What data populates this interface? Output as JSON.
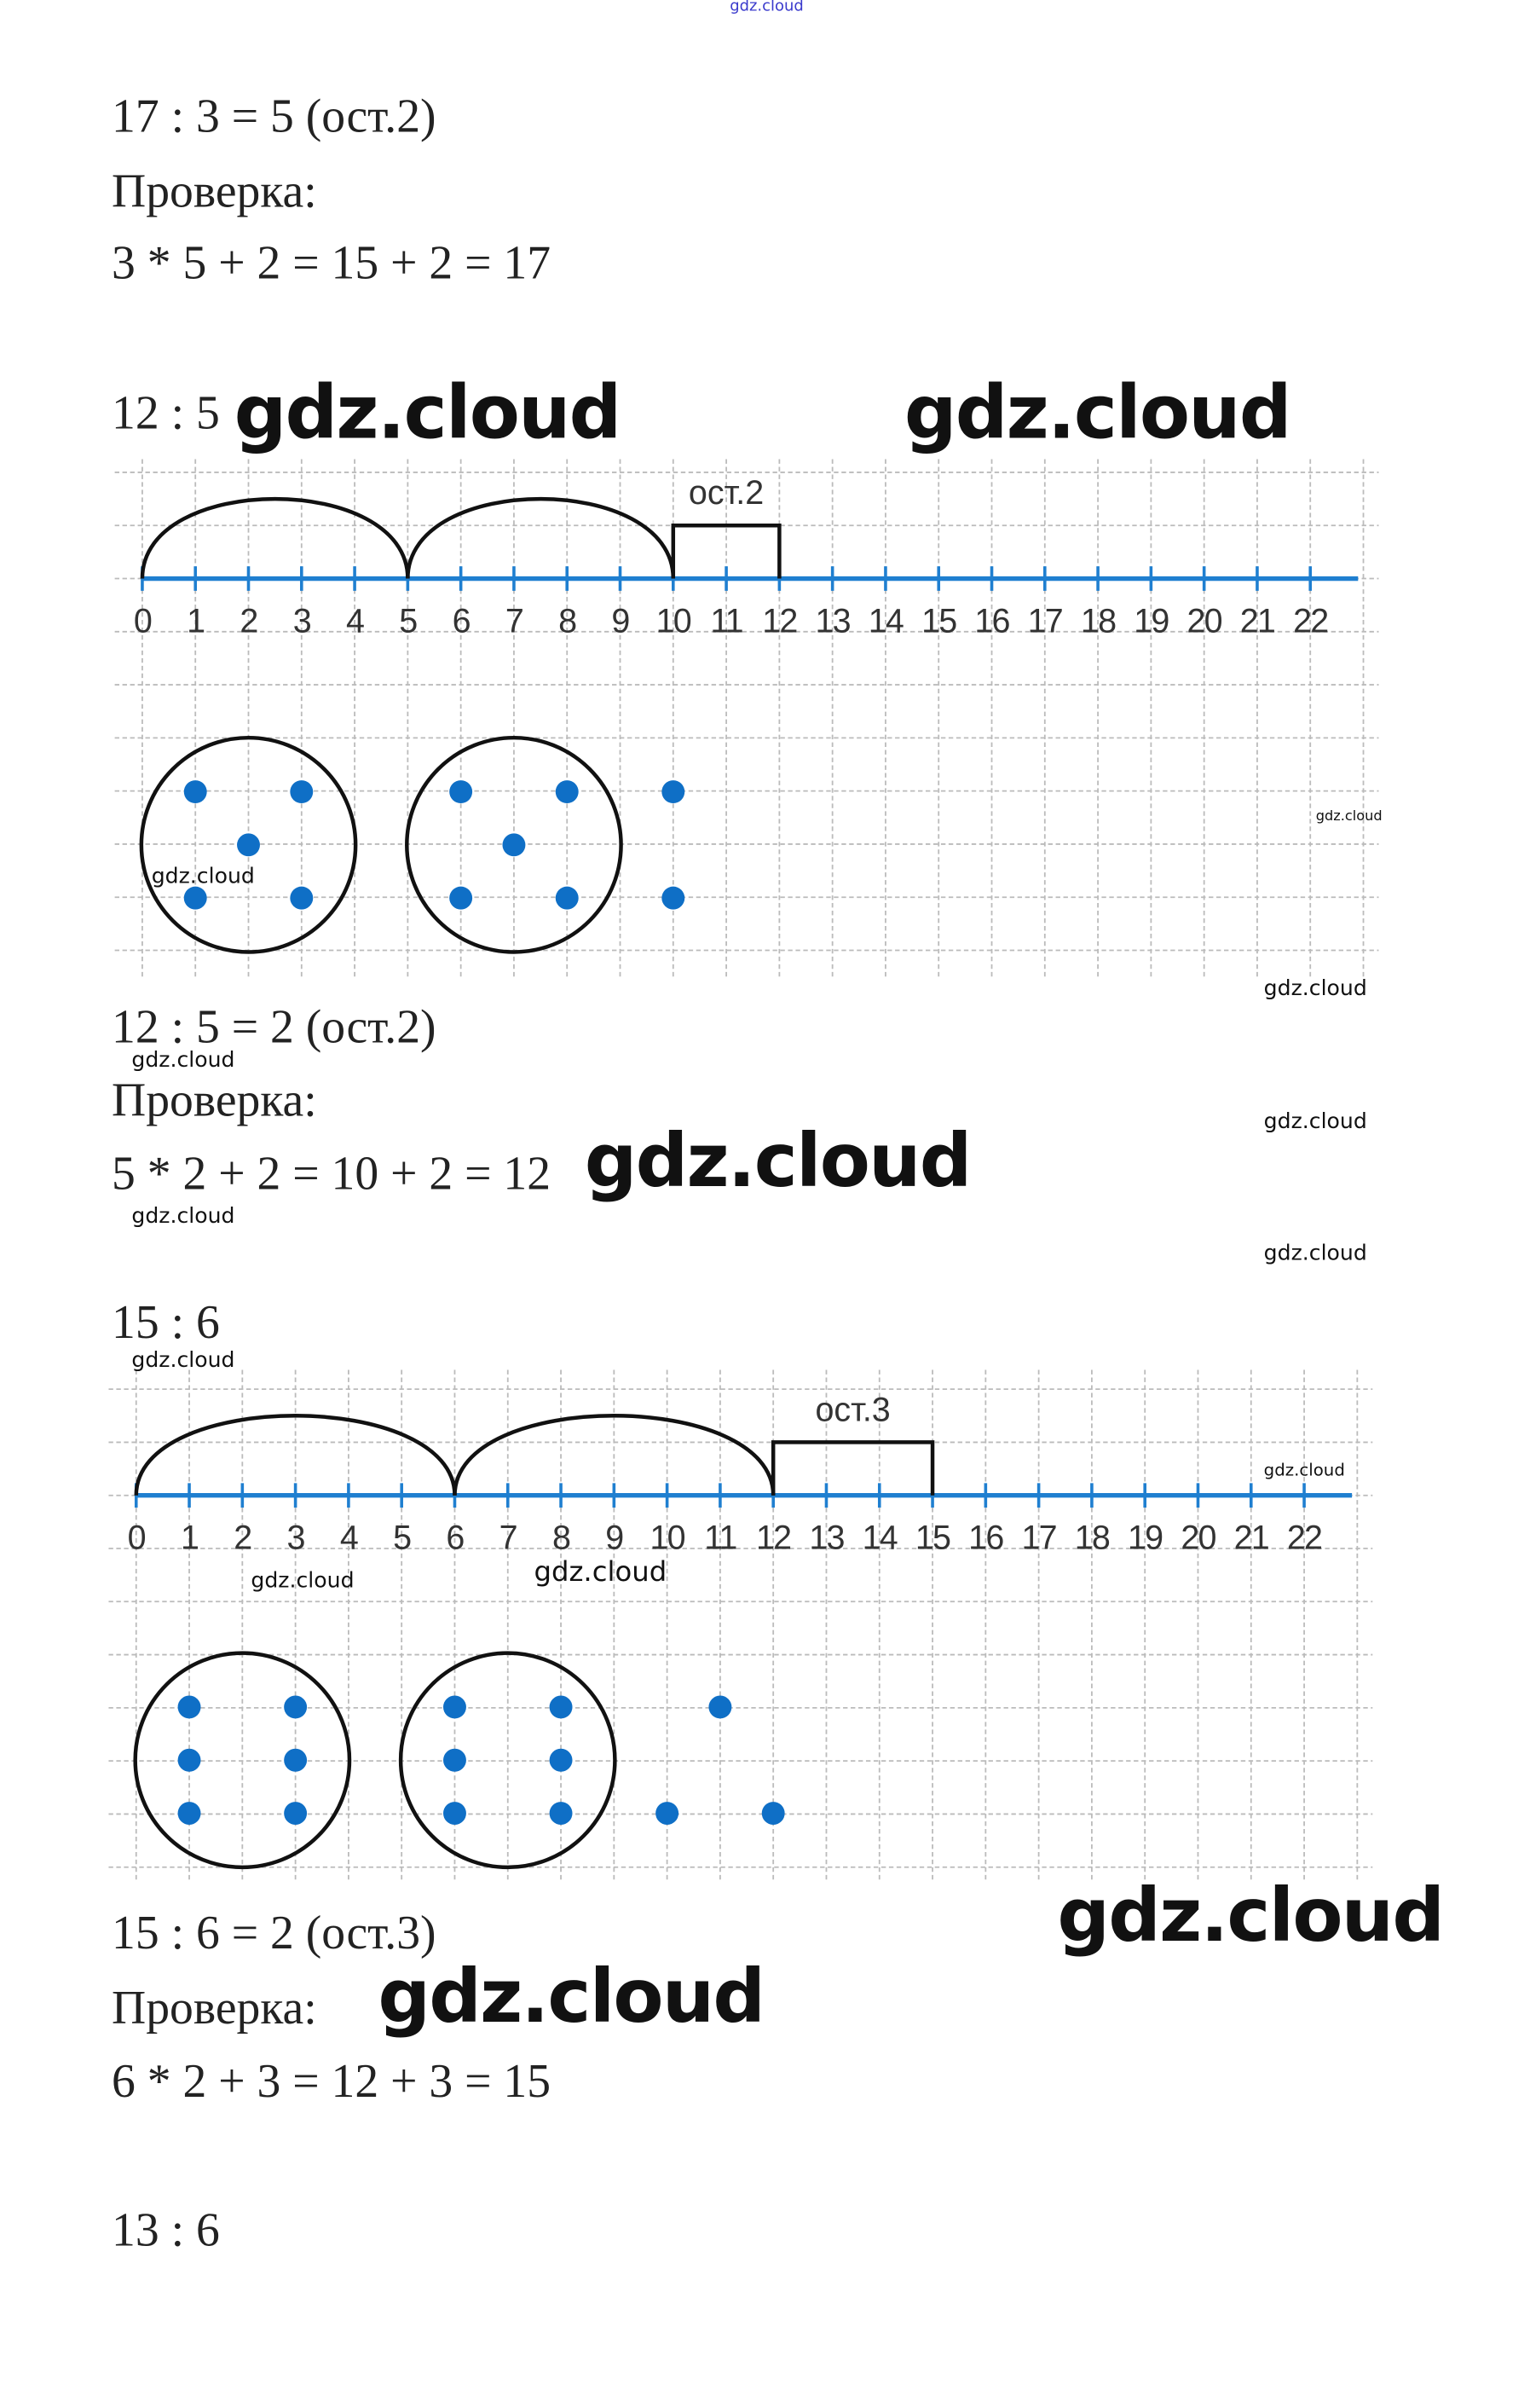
{
  "header_watermark": "gdz.cloud",
  "problem1": {
    "expr": "17 : 3 = 5 (ост.2)",
    "check_label": "Проверка:",
    "check": "3 * 5 + 2 = 15 + 2 = 17"
  },
  "problem2": {
    "task": "12 : 5",
    "remainder_label": "ост.2",
    "result": "12 : 5 = 2 (ост.2)",
    "check_label": "Проверка:",
    "check": "5 * 2 + 2 = 10 + 2 = 12",
    "number_line": {
      "min": 0,
      "max": 22,
      "jumps": [
        [
          0,
          5
        ],
        [
          5,
          10
        ]
      ],
      "remainder": [
        10,
        12
      ]
    },
    "groups": 2,
    "group_size": 5,
    "leftover": 2
  },
  "problem3": {
    "task": "15 : 6",
    "remainder_label": "ост.3",
    "result": "15 : 6 = 2 (ост.3)",
    "check_label": "Проверка:",
    "check": "6 * 2 + 3 = 12 + 3 = 15",
    "number_line": {
      "min": 0,
      "max": 22,
      "jumps": [
        [
          0,
          6
        ],
        [
          6,
          12
        ]
      ],
      "remainder": [
        12,
        15
      ]
    },
    "groups": 2,
    "group_size": 6,
    "leftover": 3
  },
  "problem4": {
    "task": "13 : 6"
  },
  "watermark": "gdz.cloud",
  "colors": {
    "line": "#1f7fd0",
    "dot": "#0f6fc6",
    "grid": "#bbbbbb",
    "ink": "#111111"
  }
}
